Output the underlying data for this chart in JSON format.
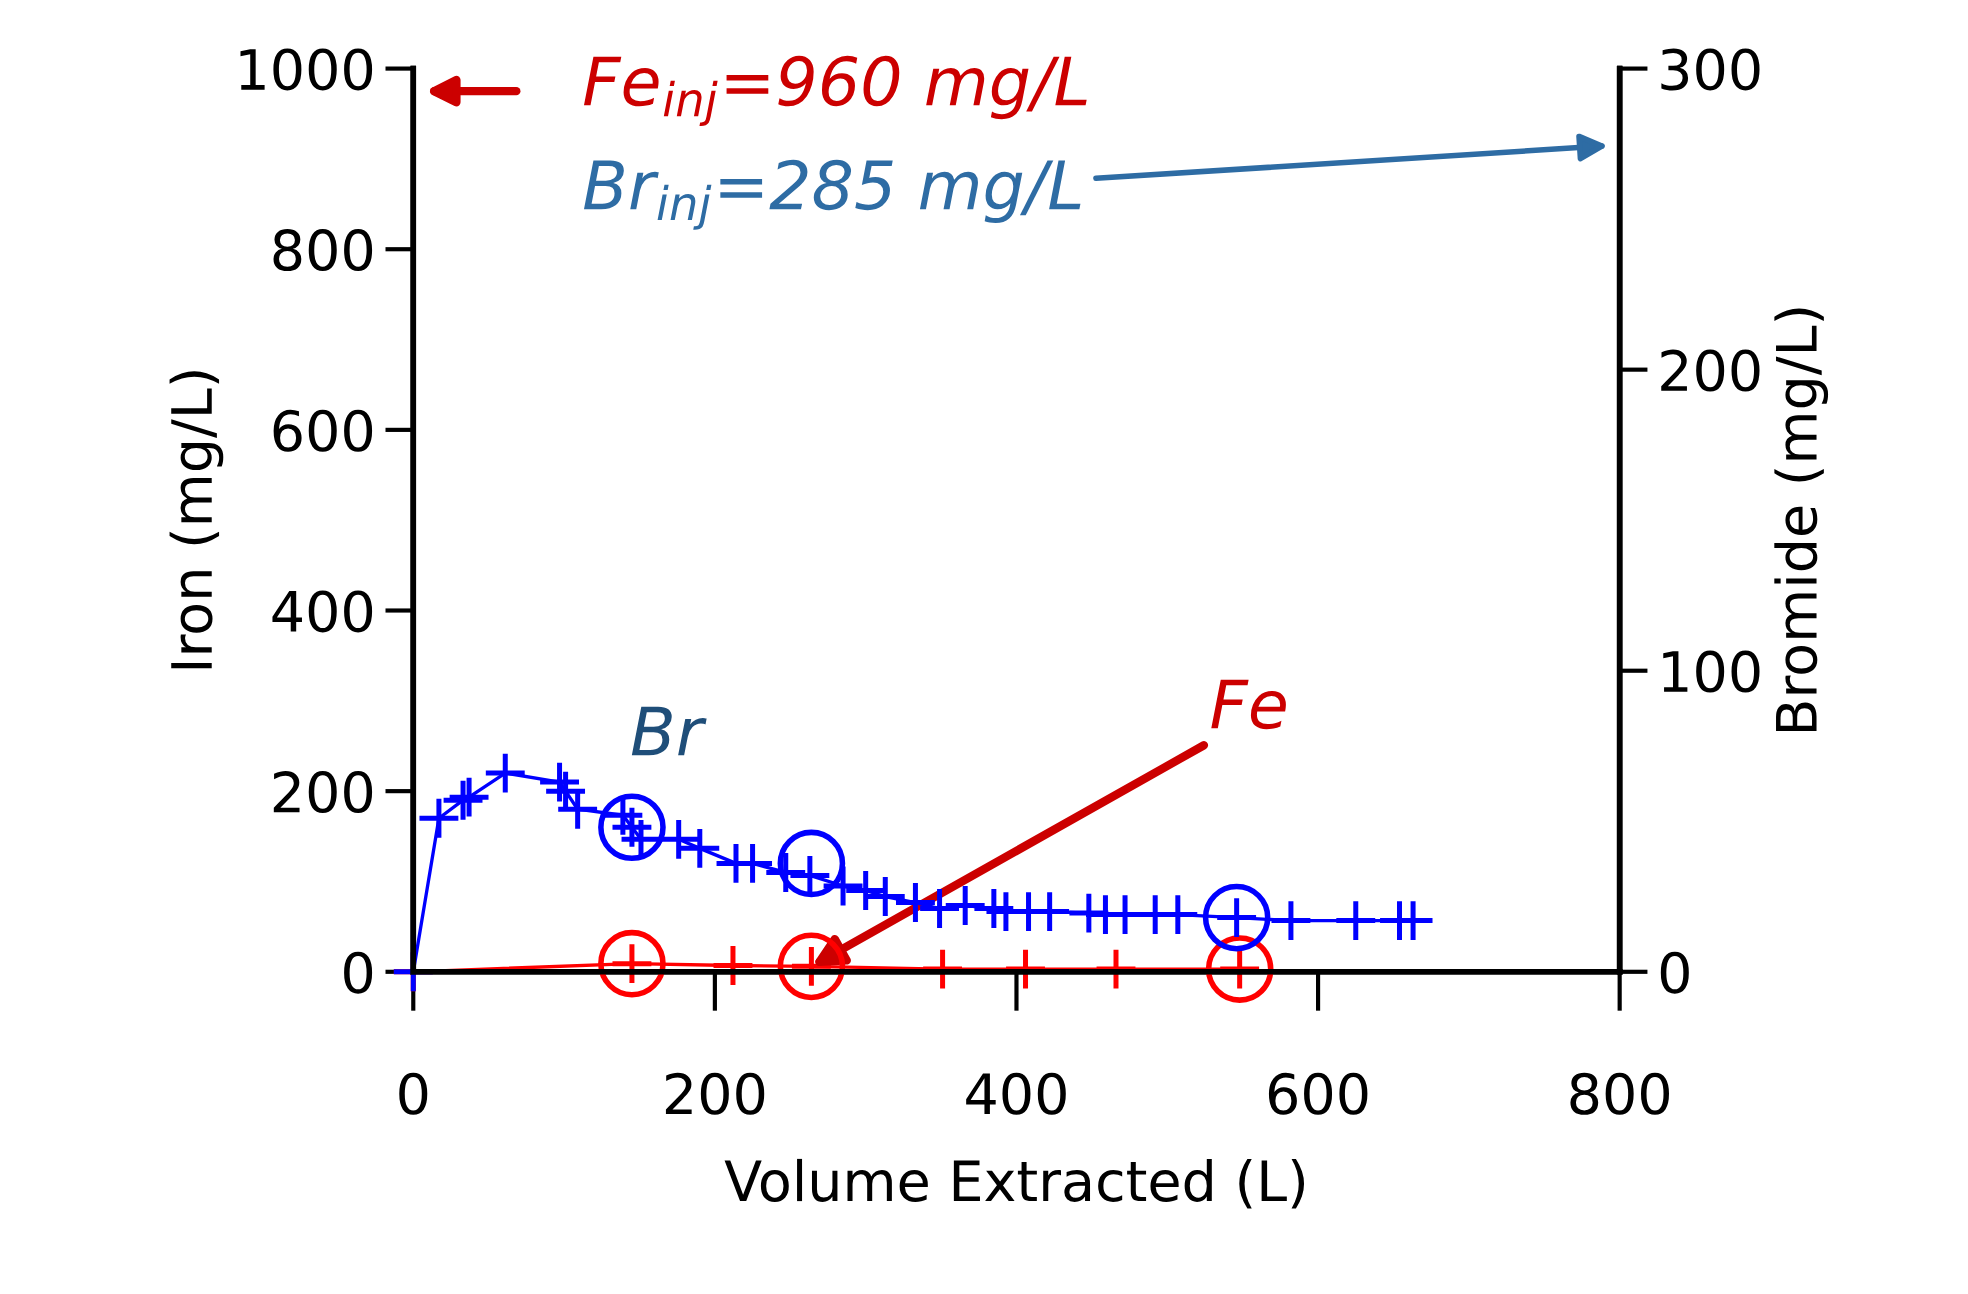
{
  "chart_data": {
    "type": "line",
    "xlabel": "Volume Extracted (L)",
    "ylabel": "Iron (mg/L)",
    "y2label": "Bromide (mg/L)",
    "xlim": [
      0,
      800
    ],
    "xticks": [
      0,
      200,
      400,
      600,
      800
    ],
    "ylim": [
      0,
      1000
    ],
    "yticks": [
      0,
      200,
      400,
      600,
      800,
      1000
    ],
    "y2lim": [
      0,
      300
    ],
    "y2ticks": [
      0,
      100,
      200,
      300
    ],
    "grid": false,
    "marker": "cross",
    "line_style": "solid",
    "series": [
      {
        "axis": "y2",
        "color": "#0000ff",
        "x": [
          0,
          17,
          33,
          37,
          61,
          97,
          101,
          109,
          139,
          145,
          151,
          176,
          190,
          214,
          225,
          247,
          263,
          285,
          300,
          313,
          333,
          349,
          366,
          385,
          393,
          408,
          422,
          448,
          459,
          472,
          492,
          507,
          546,
          582,
          625,
          654,
          663
        ],
        "values": [
          0,
          51,
          57,
          58,
          66,
          63,
          60,
          54,
          52,
          48,
          44,
          44,
          41,
          36,
          36,
          33,
          32,
          28.5,
          27,
          25,
          23,
          21,
          22,
          21,
          20,
          20,
          20,
          19.5,
          19,
          19,
          19,
          19,
          18,
          17,
          17,
          17,
          17
        ]
      },
      {
        "color": "#ff0000",
        "x": [
          0,
          145,
          212,
          264,
          351,
          406,
          466,
          548
        ],
        "values": [
          0,
          9,
          7,
          6,
          3,
          3,
          3,
          3
        ]
      },
      {
        "type": "scatter",
        "axis": "y2",
        "marker": "circle",
        "color": "#0000ff",
        "x": [
          145,
          264,
          546
        ],
        "values": [
          48,
          36,
          18
        ]
      },
      {
        "type": "scatter",
        "marker": "circle",
        "color": "#ff0000",
        "x": [
          145,
          264,
          548
        ],
        "values": [
          9,
          6,
          3
        ]
      }
    ],
    "annotations": [
      "Fe$_{inj}$=960 mg/L",
      "Br$_{inj}$=285 mg/L",
      "Br",
      {
        "text": "Fe",
        "x": 264,
        "y": 6
      }
    ]
  }
}
